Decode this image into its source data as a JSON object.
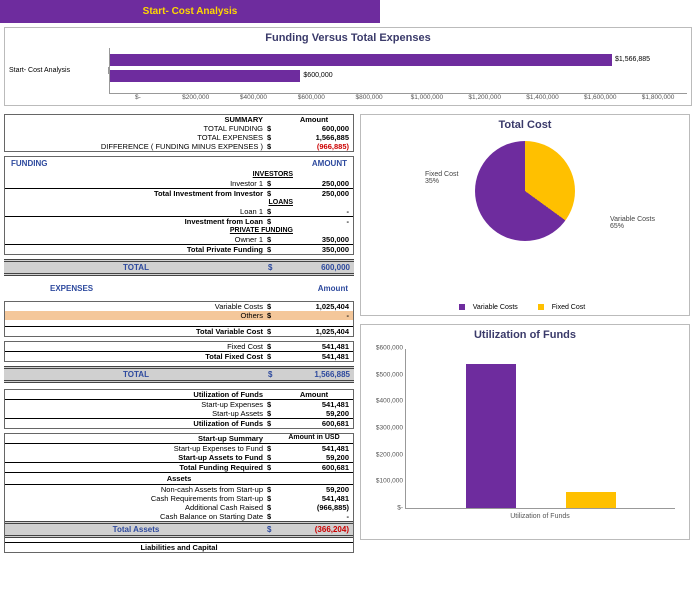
{
  "header": {
    "title": "Start- Cost Analysis"
  },
  "fundingChart": {
    "title": "Funding Versus Total Expenses",
    "seriesLabel": "Start- Cost Analysis",
    "bars": [
      {
        "label": "$1,566,885",
        "pct": 87,
        "top": 6,
        "color": "#6e2c9e"
      },
      {
        "label": "$600,000",
        "pct": 33,
        "top": 22,
        "color": "#6e2c9e"
      }
    ],
    "xmax": 1800000,
    "xticks": [
      "$-",
      "$200,000",
      "$400,000",
      "$600,000",
      "$800,000",
      "$1,000,000",
      "$1,200,000",
      "$1,400,000",
      "$1,600,000",
      "$1,800,000"
    ]
  },
  "summary": {
    "heading": "SUMMARY",
    "amountHdr": "Amount",
    "rows": [
      {
        "label": "TOTAL FUNDING",
        "cur": "$",
        "val": "600,000"
      },
      {
        "label": "TOTAL EXPENSES",
        "cur": "$",
        "val": "1,566,885"
      },
      {
        "label": "DIFFERENCE ( FUNDING MINUS EXPENSES )",
        "cur": "$",
        "val": "(966,885)",
        "red": true
      }
    ]
  },
  "funding": {
    "heading": "FUNDING",
    "amountHdr": "AMOUNT",
    "groups": [
      {
        "sub": "INVESTORS",
        "rows": [
          {
            "label": "Investor 1",
            "cur": "$",
            "val": "250,000"
          },
          {
            "label": "Total Investment from Investor",
            "cur": "$",
            "val": "250,000",
            "bold": true,
            "underline": true
          }
        ]
      },
      {
        "sub": "LOANS",
        "rows": [
          {
            "label": "Loan 1",
            "cur": "$",
            "val": "-"
          },
          {
            "label": "Investment from Loan",
            "cur": "$",
            "val": "-",
            "bold": true,
            "underline": true
          }
        ]
      },
      {
        "sub": "PRIVATE FUNDING",
        "rows": [
          {
            "label": "Owner 1",
            "cur": "$",
            "val": "350,000"
          },
          {
            "label": "Total Private Funding",
            "cur": "$",
            "val": "350,000",
            "bold": true,
            "underline": true
          }
        ]
      }
    ],
    "total": {
      "label": "TOTAL",
      "cur": "$",
      "val": "600,000"
    }
  },
  "expenses": {
    "heading": "EXPENSES",
    "amountHdr": "Amount",
    "variable": {
      "rows": [
        {
          "label": "Variable Costs",
          "cur": "$",
          "val": "1,025,404"
        },
        {
          "label": "Others",
          "cur": "$",
          "val": "-",
          "highlight": true
        }
      ],
      "totalRow": {
        "label": "Total Variable Cost",
        "cur": "$",
        "val": "1,025,404"
      }
    },
    "fixed": {
      "rows": [
        {
          "label": "Fixed Cost",
          "cur": "$",
          "val": "541,481"
        },
        {
          "label": "Total Fixed Cost",
          "cur": "$",
          "val": "541,481",
          "bold": true,
          "underline": true
        }
      ]
    },
    "total": {
      "label": "TOTAL",
      "cur": "$",
      "val": "1,566,885"
    }
  },
  "utilization": {
    "heading": "Utilization of Funds",
    "amountHdr": "Amount",
    "rows": [
      {
        "label": "Start-up Expenses",
        "cur": "$",
        "val": "541,481"
      },
      {
        "label": "Start-up Assets",
        "cur": "$",
        "val": "59,200"
      },
      {
        "label": "Utilization of Funds",
        "cur": "$",
        "val": "600,681",
        "bold": true,
        "underline": true
      }
    ]
  },
  "startupSummary": {
    "heading": "Start-up Summary",
    "amountHdr": "Amount in USD",
    "rows": [
      {
        "label": "Start-up Expenses to Fund",
        "cur": "$",
        "val": "541,481"
      },
      {
        "label": "Start-up Assets to Fund",
        "cur": "$",
        "val": "59,200",
        "bold": true
      },
      {
        "label": "Total Funding Required",
        "cur": "$",
        "val": "600,681",
        "bold": true,
        "underline": true
      }
    ]
  },
  "assets": {
    "heading": "Assets",
    "rows": [
      {
        "label": "Non-cash Assets from Start-up",
        "cur": "$",
        "val": "59,200"
      },
      {
        "label": "Cash Requirements from Start-up",
        "cur": "$",
        "val": "541,481"
      },
      {
        "label": "Additional Cash Raised",
        "cur": "$",
        "val": "(966,885)"
      },
      {
        "label": "Cash Balance on Starting Date",
        "cur": "$",
        "val": "-"
      }
    ],
    "total": {
      "label": "Total Assets",
      "cur": "$",
      "val": "(366,204)"
    }
  },
  "liabilities": {
    "heading": "Liabilities and Capital"
  },
  "pieChart": {
    "title": "Total Cost",
    "slices": [
      {
        "name": "Fixed Cost",
        "pct": "35%",
        "color": "#ffc000"
      },
      {
        "name": "Variable Costs",
        "pct": "65%",
        "color": "#6e2c9e"
      }
    ],
    "legend": [
      "Variable Costs",
      "Fixed Cost"
    ]
  },
  "barChart": {
    "title": "Utilization of Funds",
    "ymax": 600000,
    "yticks": [
      "$-",
      "$100,000",
      "$200,000",
      "$300,000",
      "$400,000",
      "$500,000",
      "$600,000"
    ],
    "bars": [
      {
        "value": 541481,
        "color": "#6e2c9e",
        "left": 60
      },
      {
        "value": 59200,
        "color": "#ffc000",
        "left": 160
      }
    ],
    "xlabel": "Utilization of Funds"
  }
}
